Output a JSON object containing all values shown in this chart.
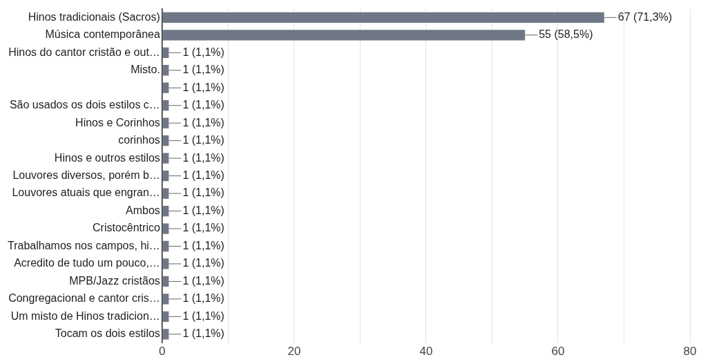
{
  "chart_data": {
    "type": "bar",
    "orientation": "horizontal",
    "categories": [
      "Hinos tradicionais (Sacros)",
      "Música contemporânea",
      "Hinos do cantor cristão e out…",
      "Misto.",
      null,
      "São usados os dois estilos c…",
      "Hinos e Corinhos",
      "corinhos",
      "Hinos e outros estilos",
      "Louvores diversos, porém b…",
      "Louvores atuais que engran…",
      "Ambos",
      "Cristocêntrico",
      "Trabalhamos nos campos, hi…",
      "Acredito de tudo um pouco,…",
      "MPB/Jazz cristãos",
      "Congregacional e cantor cris…",
      "Um misto de Hinos tradicion…",
      "Tocam os dois estilos"
    ],
    "values": [
      67,
      55,
      1,
      1,
      1,
      1,
      1,
      1,
      1,
      1,
      1,
      1,
      1,
      1,
      1,
      1,
      1,
      1,
      1
    ],
    "value_labels": [
      "67 (71,3%)",
      "55 (58,5%)",
      "1 (1,1%)",
      "1 (1,1%)",
      "1 (1,1%)",
      "1 (1,1%)",
      "1 (1,1%)",
      "1 (1,1%)",
      "1 (1,1%)",
      "1 (1,1%)",
      "1 (1,1%)",
      "1 (1,1%)",
      "1 (1,1%)",
      "1 (1,1%)",
      "1 (1,1%)",
      "1 (1,1%)",
      "1 (1,1%)",
      "1 (1,1%)",
      "1 (1,1%)"
    ],
    "color": "#6f7685",
    "xlim": [
      0,
      80
    ],
    "xticks": [
      0,
      {
        "value": 10,
        "label": null
      },
      20,
      {
        "value": 30,
        "label": null
      },
      40,
      {
        "value": 50,
        "label": null
      },
      60,
      {
        "value": 70,
        "label": null
      },
      80
    ],
    "grid": "x",
    "legend": false
  }
}
